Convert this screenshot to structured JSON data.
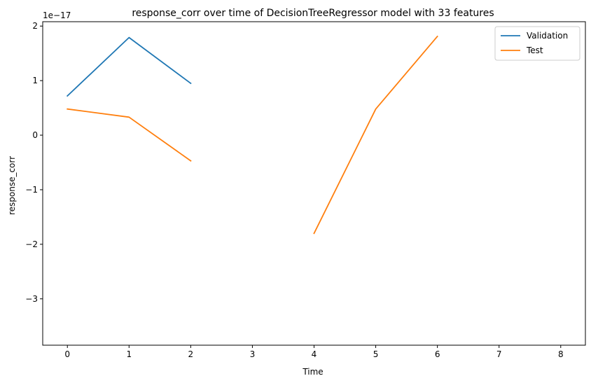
{
  "chart_data": {
    "type": "line",
    "title": "response_corr over time of DecisionTreeRegressor model with 33 features",
    "xlabel": "Time",
    "ylabel": "response_corr",
    "y_offset_label": "1e−17",
    "y_scale_exponent": -17,
    "xlim": [
      -0.4,
      8.4
    ],
    "ylim": [
      -3.85,
      2.08
    ],
    "xticks": [
      0,
      1,
      2,
      3,
      4,
      5,
      6,
      7,
      8
    ],
    "yticks": [
      -3,
      -2,
      -1,
      0,
      1,
      2
    ],
    "yticklabels": [
      "−3",
      "−2",
      "−1",
      "0",
      "1",
      "2"
    ],
    "grid": false,
    "legend_position": "top-right",
    "series": [
      {
        "name": "Validation",
        "color": "#1f77b4",
        "segments": [
          [
            [
              0,
              0.72
            ],
            [
              1,
              1.79
            ],
            [
              2,
              0.95
            ]
          ]
        ]
      },
      {
        "name": "Test",
        "color": "#ff7f0e",
        "segments": [
          [
            [
              0,
              0.48
            ],
            [
              1,
              0.33
            ],
            [
              2,
              -0.47
            ]
          ],
          [
            [
              4,
              -1.8
            ],
            [
              5,
              0.48
            ],
            [
              6,
              1.81
            ]
          ]
        ]
      }
    ]
  }
}
